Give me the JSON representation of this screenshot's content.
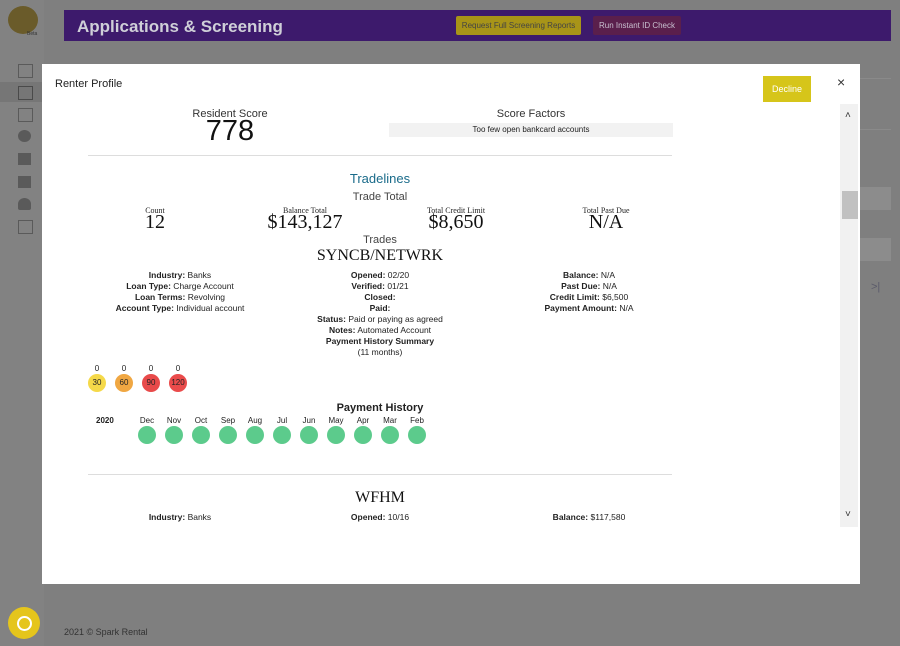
{
  "header": {
    "logo_badge": "Beta",
    "title": "Applications & Screening",
    "buttons": [
      "Request Full Screening Reports",
      "Run Instant ID Check"
    ]
  },
  "footer": "2021 © Spark Rental",
  "modal": {
    "title": "Renter Profile",
    "decline": "Decline",
    "close": "×",
    "score": {
      "label": "Resident Score",
      "value": 778
    },
    "factors": {
      "label": "Score Factors",
      "items": [
        "Too few open bankcard accounts"
      ]
    },
    "tradelines": {
      "title": "Tradelines",
      "subtitle": "Trade Total",
      "totals": [
        {
          "label": "Count",
          "value": 12
        },
        {
          "label": "Balance Total",
          "value": "$143,127"
        },
        {
          "label": "Total Credit Limit",
          "value": "$8,650"
        },
        {
          "label": "Total Past Due",
          "value": "N/A"
        }
      ],
      "trades_title": "Trades",
      "trades": [
        {
          "name": "SYNCB/NETWRK",
          "columns": [
            [
              {
                "label": "Industry:",
                "value": "Banks"
              },
              {
                "label": "Loan Type:",
                "value": "Charge Account"
              },
              {
                "label": "Loan Terms:",
                "value": "Revolving"
              },
              {
                "label": "Account Type:",
                "value": "Individual account"
              }
            ],
            [
              {
                "label": "Opened:",
                "value": "02/20"
              },
              {
                "label": "Verified:",
                "value": "01/21"
              },
              {
                "label": "Closed:"
              },
              {
                "label": "Paid:"
              },
              {
                "label": "Status:",
                "value": "Paid or paying as agreed"
              },
              {
                "label": "Notes:",
                "value": "Automated Account"
              }
            ],
            [
              {
                "label": "Balance:",
                "value": "N/A"
              },
              {
                "label": "Past Due:",
                "value": "N/A"
              },
              {
                "label": "Credit Limit:",
                "value": "$6,500"
              },
              {
                "label": "Payment Amount:",
                "value": "N/A"
              }
            ]
          ],
          "summary_title": "Payment History Summary",
          "summary_period": "(11 months)",
          "late": [
            {
              "count": 0,
              "days": 30
            },
            {
              "count": 0,
              "days": 60
            },
            {
              "count": 0,
              "days": 90
            },
            {
              "count": 0,
              "days": 120
            }
          ],
          "history": {
            "title": "Payment History",
            "year": "2020",
            "months": [
              "Dec",
              "Nov",
              "Oct",
              "Sep",
              "Aug",
              "Jul",
              "Jun",
              "May",
              "Apr",
              "Mar",
              "Feb"
            ]
          }
        },
        {
          "name": "WFHM",
          "columns": [
            [
              {
                "label": "Industry:",
                "value": "Banks"
              }
            ],
            [
              {
                "label": "Opened:",
                "value": "10/16"
              }
            ],
            [
              {
                "label": "Balance:",
                "value": "$117,580"
              }
            ]
          ]
        }
      ]
    }
  }
}
